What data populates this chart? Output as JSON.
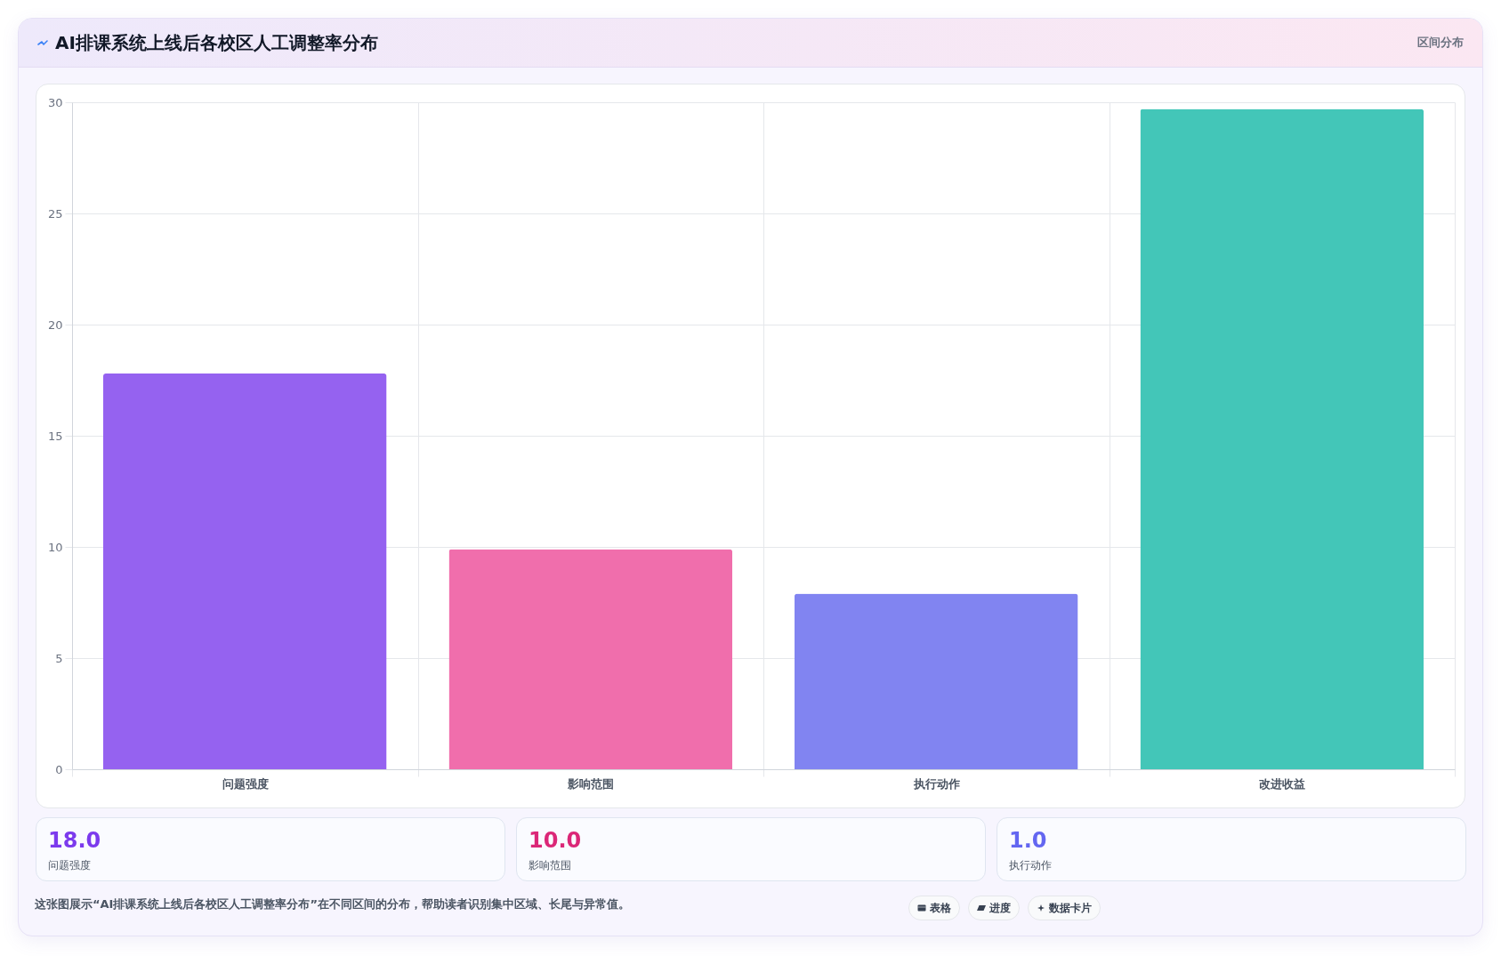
{
  "chart_data": [
    {
      "type": "bar",
      "title": "AI排课系统上线后各校区人工调整率分布",
      "subtitle": "区间分布",
      "categories": [
        "问题强度",
        "影响范围",
        "执行动作",
        "改进收益"
      ],
      "values": [
        17.8,
        9.9,
        7.9,
        29.7
      ],
      "colors": [
        "#9562f0",
        "#f06eac",
        "#8184f1",
        "#43c6b8"
      ],
      "ylim": [
        0,
        30
      ],
      "yticks": [
        0,
        5,
        10,
        15,
        20,
        25,
        30
      ],
      "grid": true,
      "annotations": [
        "这张图展示“AI排课系统上线后各校区人工调整率分布”在不同区间的分布，帮助读者识别集中区域、长尾与异常值。",
        "表格",
        "进度",
        "数据卡片"
      ]
    },
    {
      "type": "other",
      "categories": [
        "问题强度",
        "影响范围",
        "执行动作"
      ],
      "value_labels": [
        "18.0",
        "10.0",
        "1.0"
      ]
    }
  ]
}
